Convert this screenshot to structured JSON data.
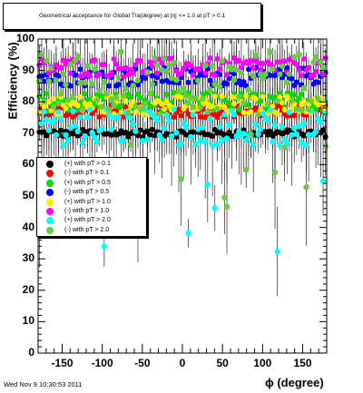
{
  "title": "Geometrical acceptance for Global Tra(degree) at |η| <= 1.0 at pT > 0.1",
  "timestamp": "Wed Nov  9 10:30:53 2011",
  "chart_data": {
    "type": "scatter",
    "xlabel": "ϕ (degree)",
    "ylabel": "Efficiency (%)",
    "xlim": [
      -180,
      180
    ],
    "ylim": [
      0,
      100
    ],
    "x_ticks": [
      "-150",
      "-100",
      "-50",
      "0",
      "50",
      "100",
      "150"
    ],
    "y_ticks": [
      "0",
      "10",
      "20",
      "30",
      "40",
      "50",
      "60",
      "70",
      "80",
      "90",
      "100"
    ],
    "legend_position": "middle-left",
    "grid": false,
    "bins": 120,
    "series": [
      {
        "name": "(+) with pT > 0.1",
        "color": "#000000",
        "mean": 70,
        "spread": 1.2
      },
      {
        "name": "(-) with pT > 0.1",
        "color": "#ff0000",
        "mean": 77,
        "spread": 2.0
      },
      {
        "name": "(+) with pT > 0.5",
        "color": "#00dd00",
        "mean": 80,
        "spread": 3.0
      },
      {
        "name": "(-) with pT > 0.5",
        "color": "#0000ff",
        "mean": 88,
        "spread": 3.0
      },
      {
        "name": "(+) with pT > 1.0",
        "color": "#ffee00",
        "mean": 79,
        "spread": 3.0
      },
      {
        "name": "(-) with pT > 1.0",
        "color": "#ff00ff",
        "mean": 91,
        "spread": 3.0
      },
      {
        "name": "(+) with pT > 2.0",
        "color": "#00ffff",
        "mean": 72,
        "spread": 6.0
      },
      {
        "name": "(-) with pT > 2.0",
        "color": "#66cc44",
        "mean": 86,
        "spread": 10.0
      }
    ]
  }
}
